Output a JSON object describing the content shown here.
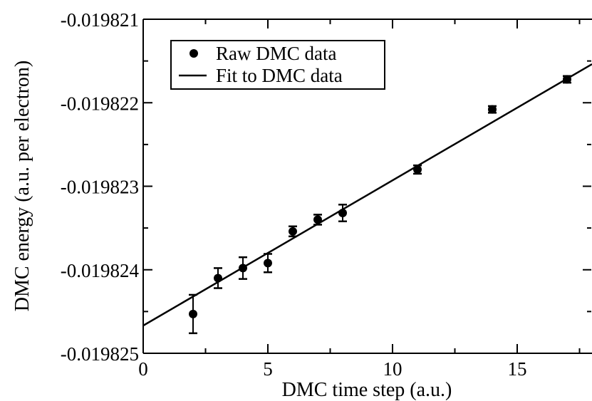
{
  "chart_data": {
    "type": "scatter",
    "xlabel": "DMC time step (a.u.)",
    "ylabel": "DMC energy (a.u. per electron)",
    "xlim": [
      0,
      18
    ],
    "ylim": [
      -0.019825,
      -0.019821
    ],
    "x_ticks": [
      0,
      5,
      10,
      15
    ],
    "x_tick_labels": [
      "0",
      "5",
      "10",
      "15"
    ],
    "y_ticks": [
      -0.019825,
      -0.019824,
      -0.019823,
      -0.019822,
      -0.019821
    ],
    "y_tick_labels": [
      "-0.019825",
      "-0.019824",
      "-0.019823",
      "-0.019822",
      "-0.019821"
    ],
    "grid": false,
    "legend_position": "top-left",
    "series": [
      {
        "name": "Raw DMC data",
        "style": "points-with-errorbars",
        "color": "#000000",
        "points": [
          {
            "x": 2,
            "y": -0.01982453,
            "err": 2.3e-07
          },
          {
            "x": 3,
            "y": -0.0198241,
            "err": 1.2e-07
          },
          {
            "x": 4,
            "y": -0.01982398,
            "err": 1.3e-07
          },
          {
            "x": 5,
            "y": -0.01982392,
            "err": 1.1e-07
          },
          {
            "x": 6,
            "y": -0.01982354,
            "err": 6e-08
          },
          {
            "x": 7,
            "y": -0.0198234,
            "err": 6e-08
          },
          {
            "x": 8,
            "y": -0.01982332,
            "err": 1e-07
          },
          {
            "x": 11,
            "y": -0.0198228,
            "err": 5e-08
          },
          {
            "x": 14,
            "y": -0.01982208,
            "err": 4e-08
          },
          {
            "x": 17,
            "y": -0.01982172,
            "err": 4e-08
          }
        ]
      },
      {
        "name": "Fit to DMC data",
        "style": "line",
        "color": "#000000",
        "x": [
          0,
          18
        ],
        "y": [
          -0.0198246685,
          -0.019821538
        ]
      }
    ]
  }
}
